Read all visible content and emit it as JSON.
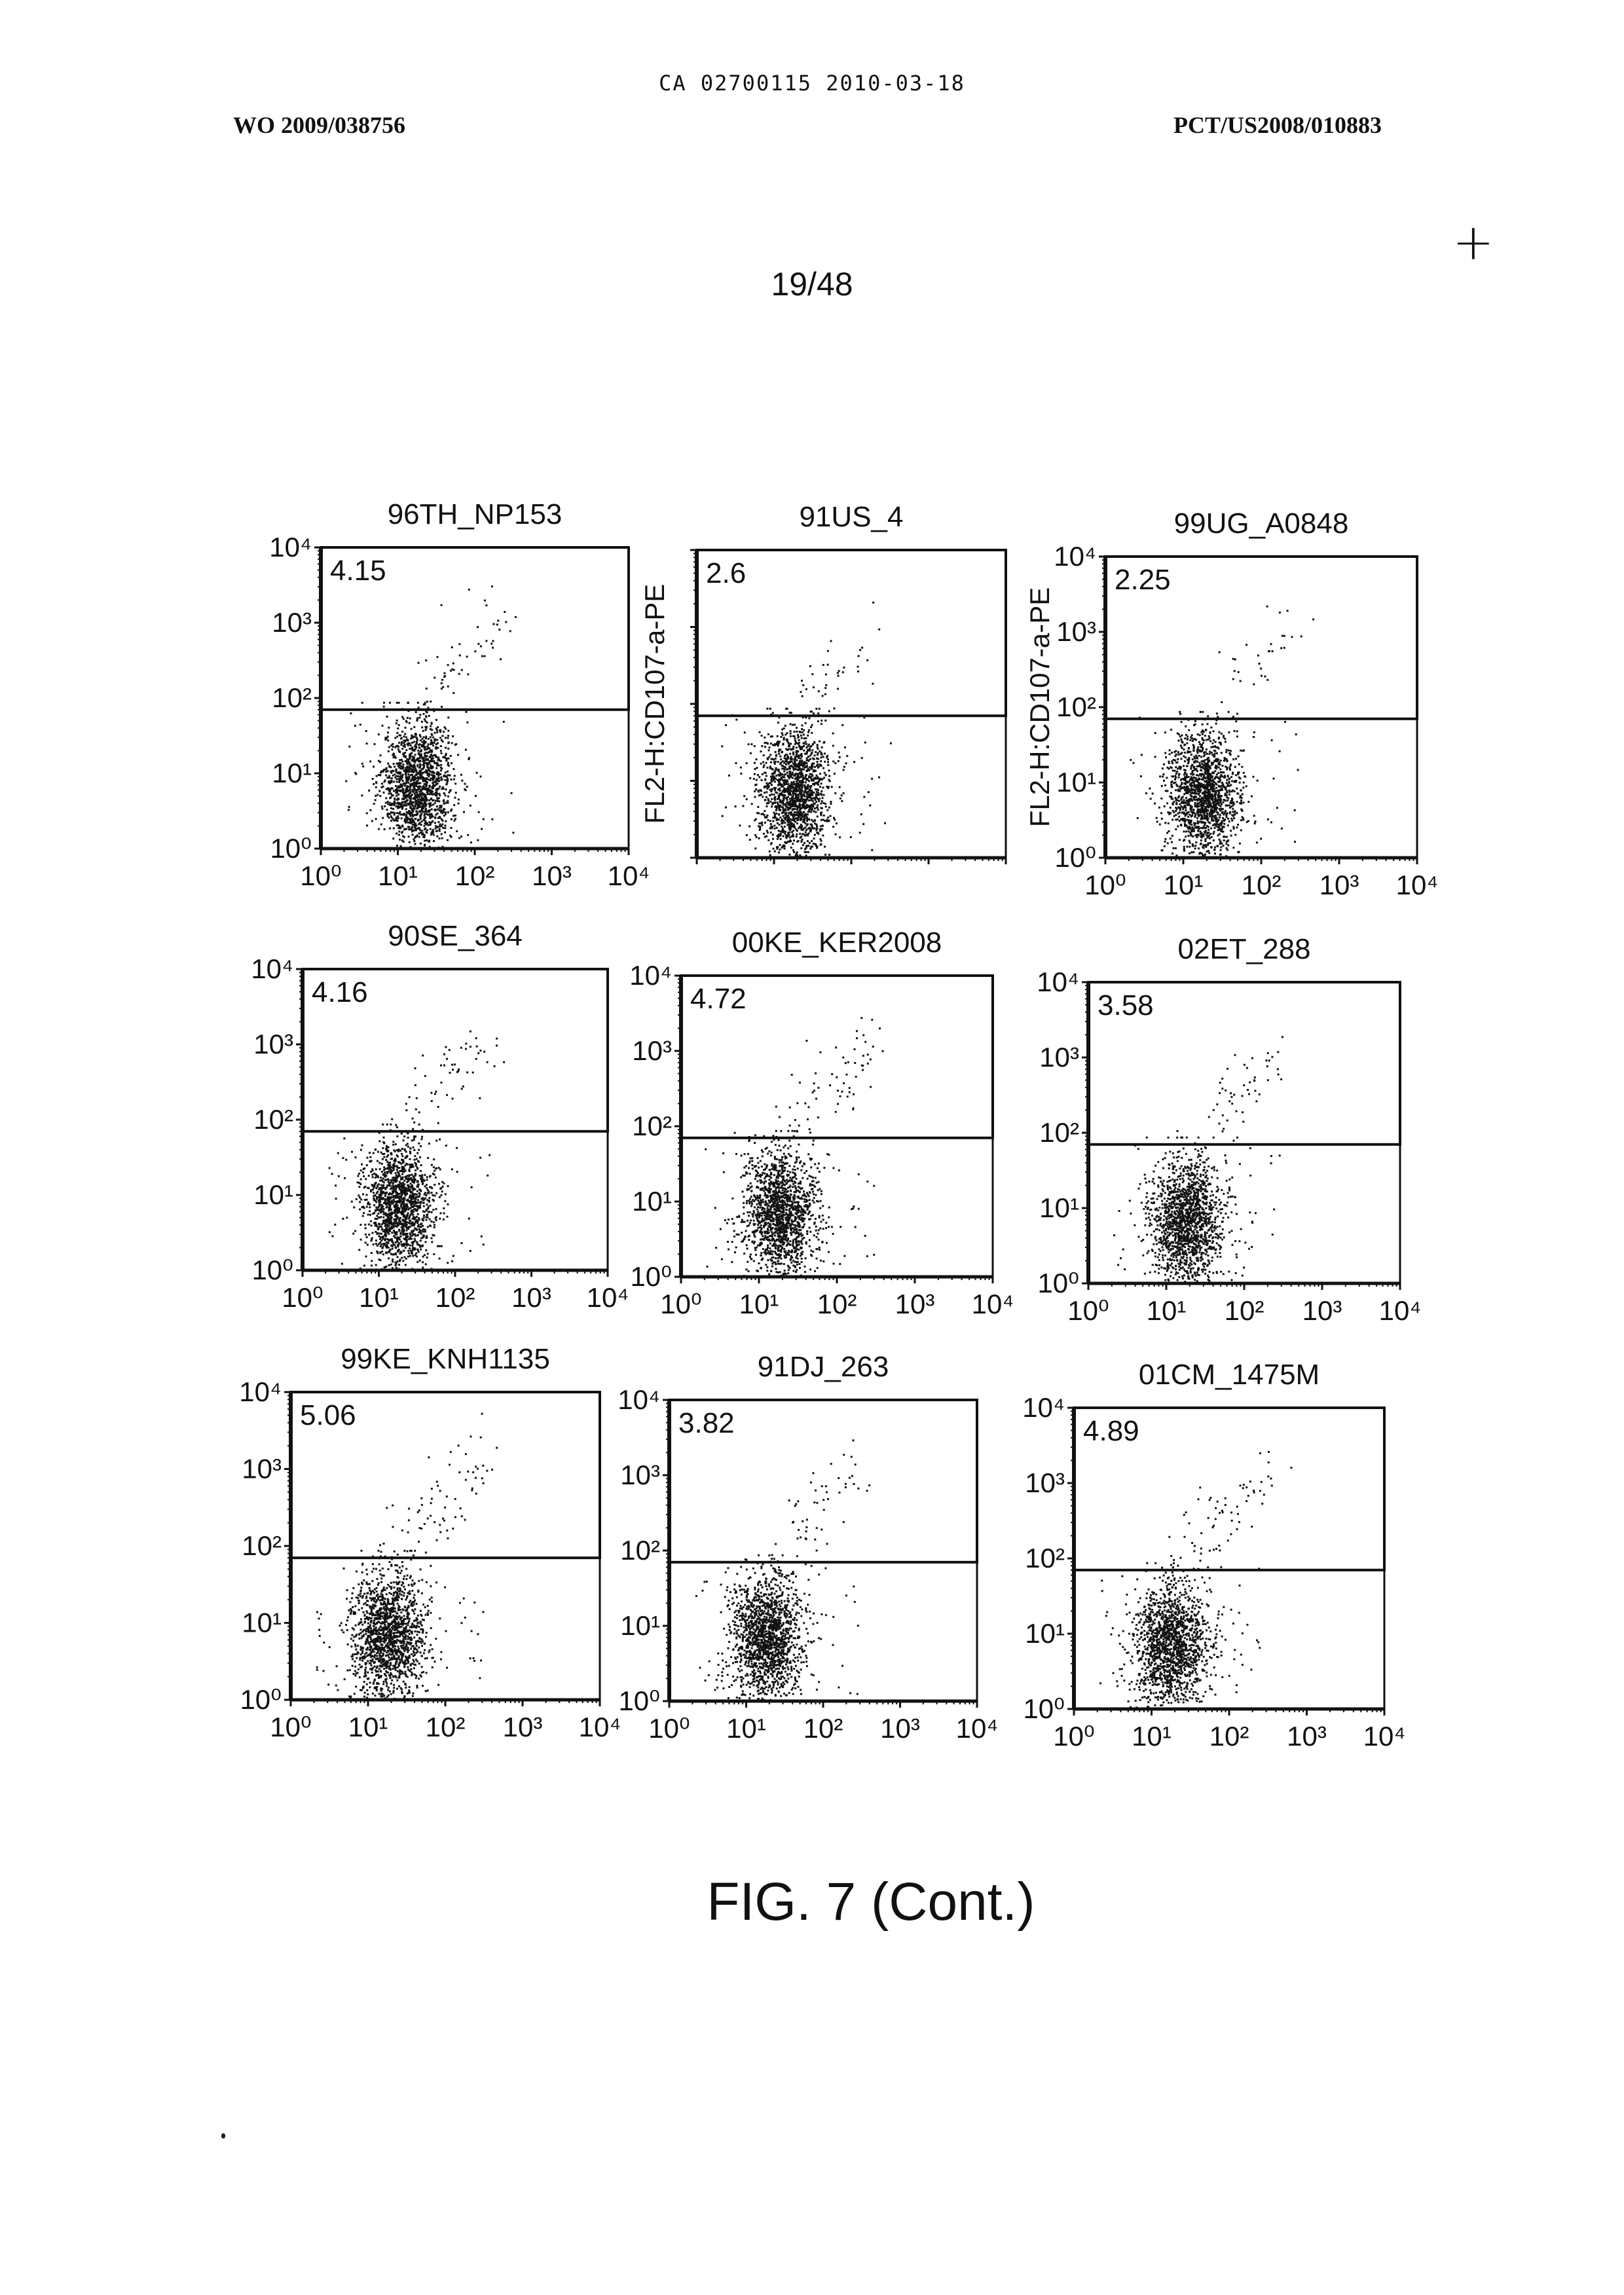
{
  "header": {
    "ca_line": "CA 02700115 2010-03-18",
    "wo_number": "WO 2009/038756",
    "pct_number": "PCT/US2008/010883"
  },
  "page_number": "19/48",
  "registration_mark": "+",
  "figure_caption": "FIG. 7 (Cont.)",
  "chart_data": [
    {
      "type": "scatter",
      "title": "96TH_NP153",
      "gate_value": "4.15",
      "ylabel": "",
      "x_ticks": [
        "10⁰",
        "10¹",
        "10²",
        "10³",
        "10⁴"
      ],
      "y_ticks": [
        "10⁰",
        "10¹",
        "10²",
        "10³",
        "10⁴"
      ],
      "xlim": [
        1,
        10000
      ],
      "ylim": [
        1,
        10000
      ],
      "log_scale": true,
      "gate_threshold": 70
    },
    {
      "type": "scatter",
      "title": "91US_4",
      "gate_value": "2.6",
      "ylabel": "FL2-H:CD107-a-PE",
      "x_ticks": [],
      "y_ticks": [],
      "xlim": [
        1,
        10000
      ],
      "ylim": [
        1,
        10000
      ],
      "log_scale": true,
      "gate_threshold": 70
    },
    {
      "type": "scatter",
      "title": "99UG_A0848",
      "gate_value": "2.25",
      "ylabel": "FL2-H:CD107-a-PE",
      "x_ticks": [
        "10⁰",
        "10¹",
        "10²",
        "10³",
        "10⁴"
      ],
      "y_ticks": [
        "10⁰",
        "10¹",
        "10²",
        "10³",
        "10⁴"
      ],
      "xlim": [
        1,
        10000
      ],
      "ylim": [
        1,
        10000
      ],
      "log_scale": true,
      "gate_threshold": 70
    },
    {
      "type": "scatter",
      "title": "90SE_364",
      "gate_value": "4.16",
      "ylabel": "",
      "x_ticks": [
        "10⁰",
        "10¹",
        "10²",
        "10³",
        "10⁴"
      ],
      "y_ticks": [
        "10⁰",
        "10¹",
        "10²",
        "10³",
        "10⁴"
      ],
      "xlim": [
        1,
        10000
      ],
      "ylim": [
        1,
        10000
      ],
      "log_scale": true,
      "gate_threshold": 70
    },
    {
      "type": "scatter",
      "title": "00KE_KER2008",
      "gate_value": "4.72",
      "ylabel": "",
      "x_ticks": [
        "10⁰",
        "10¹",
        "10²",
        "10³",
        "10⁴"
      ],
      "y_ticks": [
        "10⁰",
        "10¹",
        "10²",
        "10³",
        "10⁴"
      ],
      "xlim": [
        1,
        10000
      ],
      "ylim": [
        1,
        10000
      ],
      "log_scale": true,
      "gate_threshold": 70
    },
    {
      "type": "scatter",
      "title": "02ET_288",
      "gate_value": "3.58",
      "ylabel": "",
      "x_ticks": [
        "10⁰",
        "10¹",
        "10²",
        "10³",
        "10⁴"
      ],
      "y_ticks": [
        "10⁰",
        "10¹",
        "10²",
        "10³",
        "10⁴"
      ],
      "xlim": [
        1,
        10000
      ],
      "ylim": [
        1,
        10000
      ],
      "log_scale": true,
      "gate_threshold": 70
    },
    {
      "type": "scatter",
      "title": "99KE_KNH1135",
      "gate_value": "5.06",
      "ylabel": "",
      "x_ticks": [
        "10⁰",
        "10¹",
        "10²",
        "10³",
        "10⁴"
      ],
      "y_ticks": [
        "10⁰",
        "10¹",
        "10²",
        "10³",
        "10⁴"
      ],
      "xlim": [
        1,
        10000
      ],
      "ylim": [
        1,
        10000
      ],
      "log_scale": true,
      "gate_threshold": 70
    },
    {
      "type": "scatter",
      "title": "91DJ_263",
      "gate_value": "3.82",
      "ylabel": "",
      "x_ticks": [
        "10⁰",
        "10¹",
        "10²",
        "10³",
        "10⁴"
      ],
      "y_ticks": [
        "10⁰",
        "10¹",
        "10²",
        "10³",
        "10⁴"
      ],
      "xlim": [
        1,
        10000
      ],
      "ylim": [
        1,
        10000
      ],
      "log_scale": true,
      "gate_threshold": 70
    },
    {
      "type": "scatter",
      "title": "01CM_1475M",
      "gate_value": "4.89",
      "ylabel": "",
      "x_ticks": [
        "10⁰",
        "10¹",
        "10²",
        "10³",
        "10⁴"
      ],
      "y_ticks": [
        "10⁰",
        "10¹",
        "10²",
        "10³",
        "10⁴"
      ],
      "xlim": [
        1,
        10000
      ],
      "ylim": [
        1,
        10000
      ],
      "log_scale": true,
      "gate_threshold": 70
    }
  ]
}
